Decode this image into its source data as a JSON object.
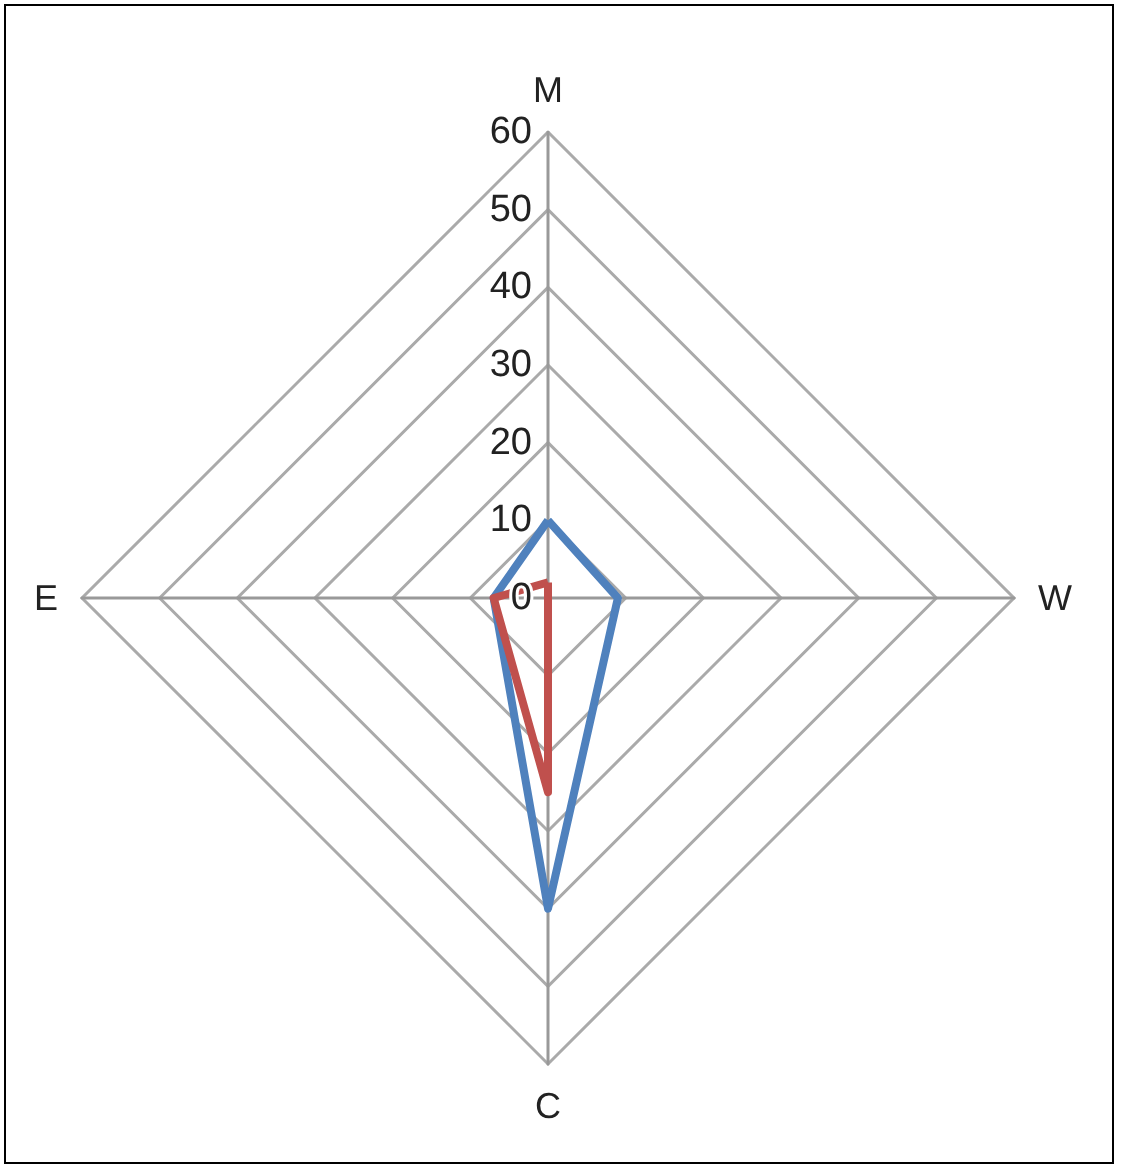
{
  "chart_data": {
    "type": "radar",
    "categories": [
      "M",
      "W",
      "C",
      "E"
    ],
    "series": [
      {
        "color": "#4f81bd",
        "values": [
          10,
          9,
          40,
          7
        ]
      },
      {
        "color": "#c0504d",
        "values": [
          2,
          0,
          25,
          7
        ]
      }
    ],
    "ylim": [
      0,
      60
    ],
    "yticks": [
      0,
      10,
      20,
      30,
      40,
      50,
      60
    ],
    "grid": true,
    "marker": "none"
  }
}
